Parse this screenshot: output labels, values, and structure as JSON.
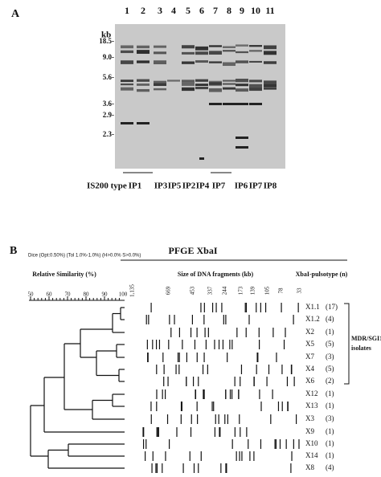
{
  "panel_a": {
    "label": "A",
    "kb_label": "kb",
    "lanes": [
      "1",
      "2",
      "3",
      "4",
      "5",
      "6",
      "7",
      "8",
      "9",
      "10",
      "11"
    ],
    "sizes": [
      "18.5-",
      "9.0-",
      "5.6-",
      "3.6-",
      "2.9-",
      "2.3-"
    ],
    "type_label": "IS200 type",
    "types": [
      "IP1",
      "IP3",
      "IP5",
      "IP2",
      "IP4",
      "IP7",
      "IP6",
      "IP7",
      "IP8"
    ]
  },
  "panel_b": {
    "label": "B",
    "settings": "Dice (Opt:0.50%) (Tol 1.0%-1.0%) (H>0.0% S>0.0%)",
    "title": "PFGE XbaI",
    "similarity_header": "Relative Similarity (%)",
    "fragments_header": "Size of DNA fragments (kb)",
    "pulsotype_header": "XbaI-pulsotype (n)",
    "scale": [
      "50",
      "60",
      "70",
      "80",
      "90",
      "100"
    ],
    "fragment_sizes": [
      "1,135",
      "669",
      "453",
      "337",
      "244",
      "173",
      "139",
      "105",
      "78",
      "33"
    ],
    "rows": [
      {
        "name": "X1.1",
        "n": "(17)"
      },
      {
        "name": "X1.2",
        "n": "(4)"
      },
      {
        "name": "X2",
        "n": "(1)"
      },
      {
        "name": "X5",
        "n": "(5)"
      },
      {
        "name": "X7",
        "n": "(3)"
      },
      {
        "name": "X4",
        "n": "(5)"
      },
      {
        "name": "X6",
        "n": "(2)"
      },
      {
        "name": "X12",
        "n": "(1)"
      },
      {
        "name": "X13",
        "n": "(1)"
      },
      {
        "name": "X3",
        "n": "(3)"
      },
      {
        "name": "X9",
        "n": "(1)"
      },
      {
        "name": "X10",
        "n": "(1)"
      },
      {
        "name": "X14",
        "n": "(1)"
      },
      {
        "name": "X8",
        "n": "(4)"
      }
    ],
    "group_label": [
      "MDR/SGI1",
      "isolates"
    ]
  }
}
